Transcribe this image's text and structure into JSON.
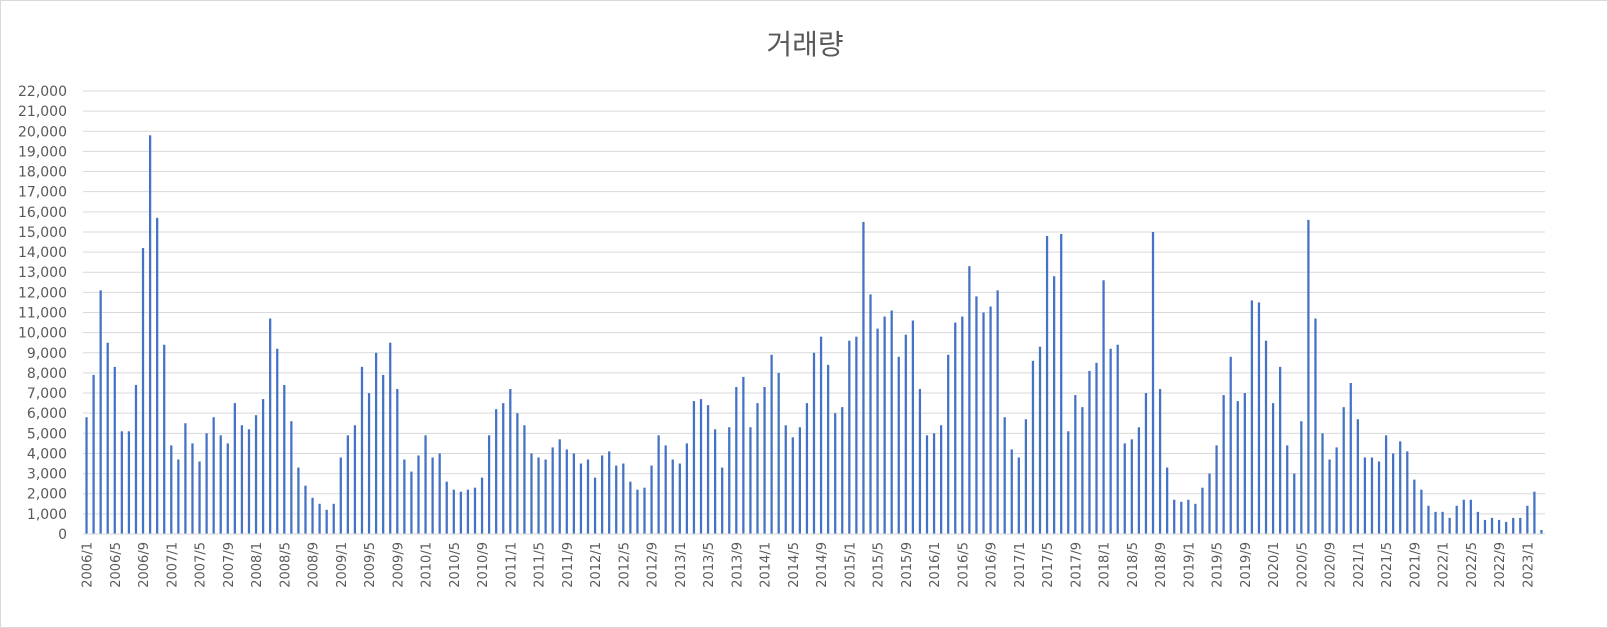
{
  "chart_data": {
    "type": "bar",
    "title": "거래량",
    "xlabel": "",
    "ylabel": "",
    "ylim": [
      0,
      22000
    ],
    "ytick_step": 1000,
    "grid": true,
    "legend": "none",
    "bar_color": "#4472c4",
    "grid_color": "#d9d9d9",
    "text_color": "#595959",
    "start": "2006/1",
    "tick_labels": [
      "2006/1",
      "2006/5",
      "2006/9",
      "2007/1",
      "2007/5",
      "2007/9",
      "2008/1",
      "2008/5",
      "2008/9",
      "2009/1",
      "2009/5",
      "2009/9",
      "2010/1",
      "2010/5",
      "2010/9",
      "2011/1",
      "2011/5",
      "2011/9",
      "2012/1",
      "2012/5",
      "2012/9",
      "2013/1",
      "2013/5",
      "2013/9",
      "2014/1",
      "2014/5",
      "2014/9",
      "2015/1",
      "2015/5",
      "2015/9",
      "2016/1",
      "2016/5",
      "2016/9",
      "2017/1",
      "2017/5",
      "2017/9",
      "2018/1",
      "2018/5",
      "2018/9",
      "2019/1",
      "2019/5",
      "2019/9",
      "2020/1",
      "2020/5",
      "2020/9",
      "2021/1",
      "2021/5",
      "2021/9",
      "2022/1",
      "2022/5",
      "2022/9",
      "2023/1"
    ],
    "values": [
      5800,
      7900,
      12100,
      9500,
      8300,
      5100,
      5100,
      7400,
      14200,
      19800,
      15700,
      9400,
      4400,
      3700,
      5500,
      4500,
      3600,
      5000,
      5800,
      4900,
      4500,
      6500,
      5400,
      5200,
      5900,
      6700,
      10700,
      9200,
      7400,
      5600,
      3300,
      2400,
      1800,
      1500,
      1200,
      1500,
      3800,
      4900,
      5400,
      8300,
      7000,
      9000,
      7900,
      9500,
      7200,
      3700,
      3100,
      3900,
      4900,
      3800,
      4000,
      2600,
      2200,
      2100,
      2200,
      2300,
      2800,
      4900,
      6200,
      6500,
      7200,
      6000,
      5400,
      4000,
      3800,
      3700,
      4300,
      4700,
      4200,
      4000,
      3500,
      3700,
      2800,
      3900,
      4100,
      3400,
      3500,
      2600,
      2200,
      2300,
      3400,
      4900,
      4400,
      3700,
      3500,
      4500,
      6600,
      6700,
      6400,
      5200,
      3300,
      5300,
      7300,
      7800,
      5300,
      6500,
      7300,
      8900,
      8000,
      5400,
      4800,
      5300,
      6500,
      9000,
      9800,
      8400,
      6000,
      6300,
      9600,
      9800,
      15500,
      11900,
      10200,
      10800,
      11100,
      8800,
      9900,
      10600,
      7200,
      4900,
      5000,
      5400,
      8900,
      10500,
      10800,
      13300,
      11800,
      11000,
      11300,
      12100,
      5800,
      4200,
      3800,
      5700,
      8600,
      9300,
      14800,
      12800,
      14900,
      5100,
      6900,
      6300,
      8100,
      8500,
      12600,
      9200,
      9400,
      4500,
      4700,
      5300,
      7000,
      15000,
      7200,
      3300,
      1700,
      1600,
      1700,
      1500,
      2300,
      3000,
      4400,
      6900,
      8800,
      6600,
      7000,
      11600,
      11500,
      9600,
      6500,
      8300,
      4400,
      3000,
      5600,
      15600,
      10700,
      5000,
      3700,
      4300,
      6300,
      7500,
      5700,
      3800,
      3800,
      3600,
      4900,
      4000,
      4600,
      4100,
      2700,
      2200,
      1400,
      1100,
      1100,
      800,
      1400,
      1700,
      1700,
      1100,
      700,
      800,
      700,
      600,
      800,
      800,
      1400,
      2100,
      200
    ]
  }
}
